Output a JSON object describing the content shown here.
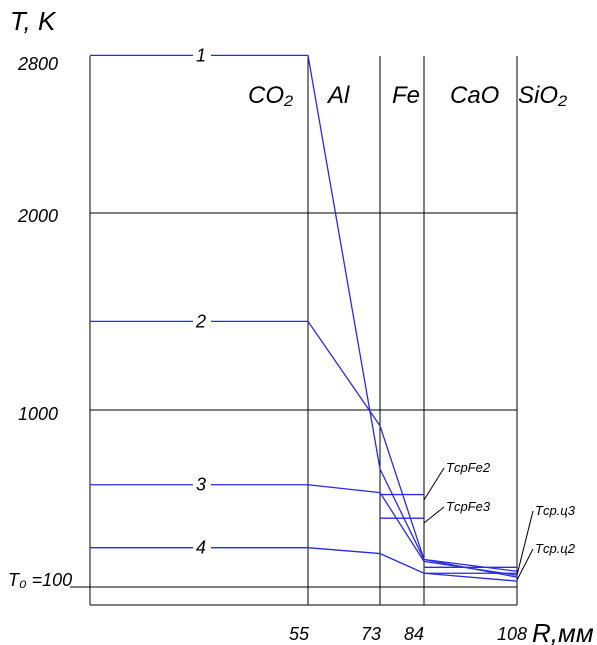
{
  "chart_data": {
    "type": "line",
    "ylabel": "T, K",
    "xlabel": "R,мм",
    "ylim": [
      0,
      2800
    ],
    "xlim": [
      0,
      108
    ],
    "y_ticks": [
      "2800",
      "2000",
      "1000",
      "T₀ =100"
    ],
    "x_ticks": [
      "55",
      "73",
      "84",
      "108"
    ],
    "zones": [
      "CO₂",
      "Al",
      "Fe",
      "CaO",
      "SiO₂"
    ],
    "zone_boundaries": [
      55,
      73,
      84
    ],
    "grid": true,
    "series": [
      {
        "name": "1",
        "x": [
          0,
          55,
          73,
          84,
          108
        ],
        "y": [
          2800,
          2800,
          700,
          240,
          180
        ]
      },
      {
        "name": "2",
        "x": [
          0,
          55,
          73,
          84,
          108
        ],
        "y": [
          1450,
          1450,
          920,
          240,
          150
        ]
      },
      {
        "name": "3",
        "x": [
          0,
          55,
          73,
          84,
          108
        ],
        "y": [
          620,
          620,
          580,
          230,
          160
        ]
      },
      {
        "name": "4",
        "x": [
          0,
          55,
          73,
          84,
          108
        ],
        "y": [
          300,
          300,
          270,
          170,
          130
        ]
      }
    ],
    "levels": [
      {
        "label": "TсрFe2",
        "x": [
          73,
          84
        ],
        "y": 570
      },
      {
        "label": "TсрFe3",
        "x": [
          73,
          84
        ],
        "y": 450
      },
      {
        "label": "Tср.ц3",
        "x": [
          84,
          108
        ],
        "y": 200
      },
      {
        "label": "Tср.ц2",
        "x": [
          84,
          108
        ],
        "y": 170
      }
    ]
  }
}
